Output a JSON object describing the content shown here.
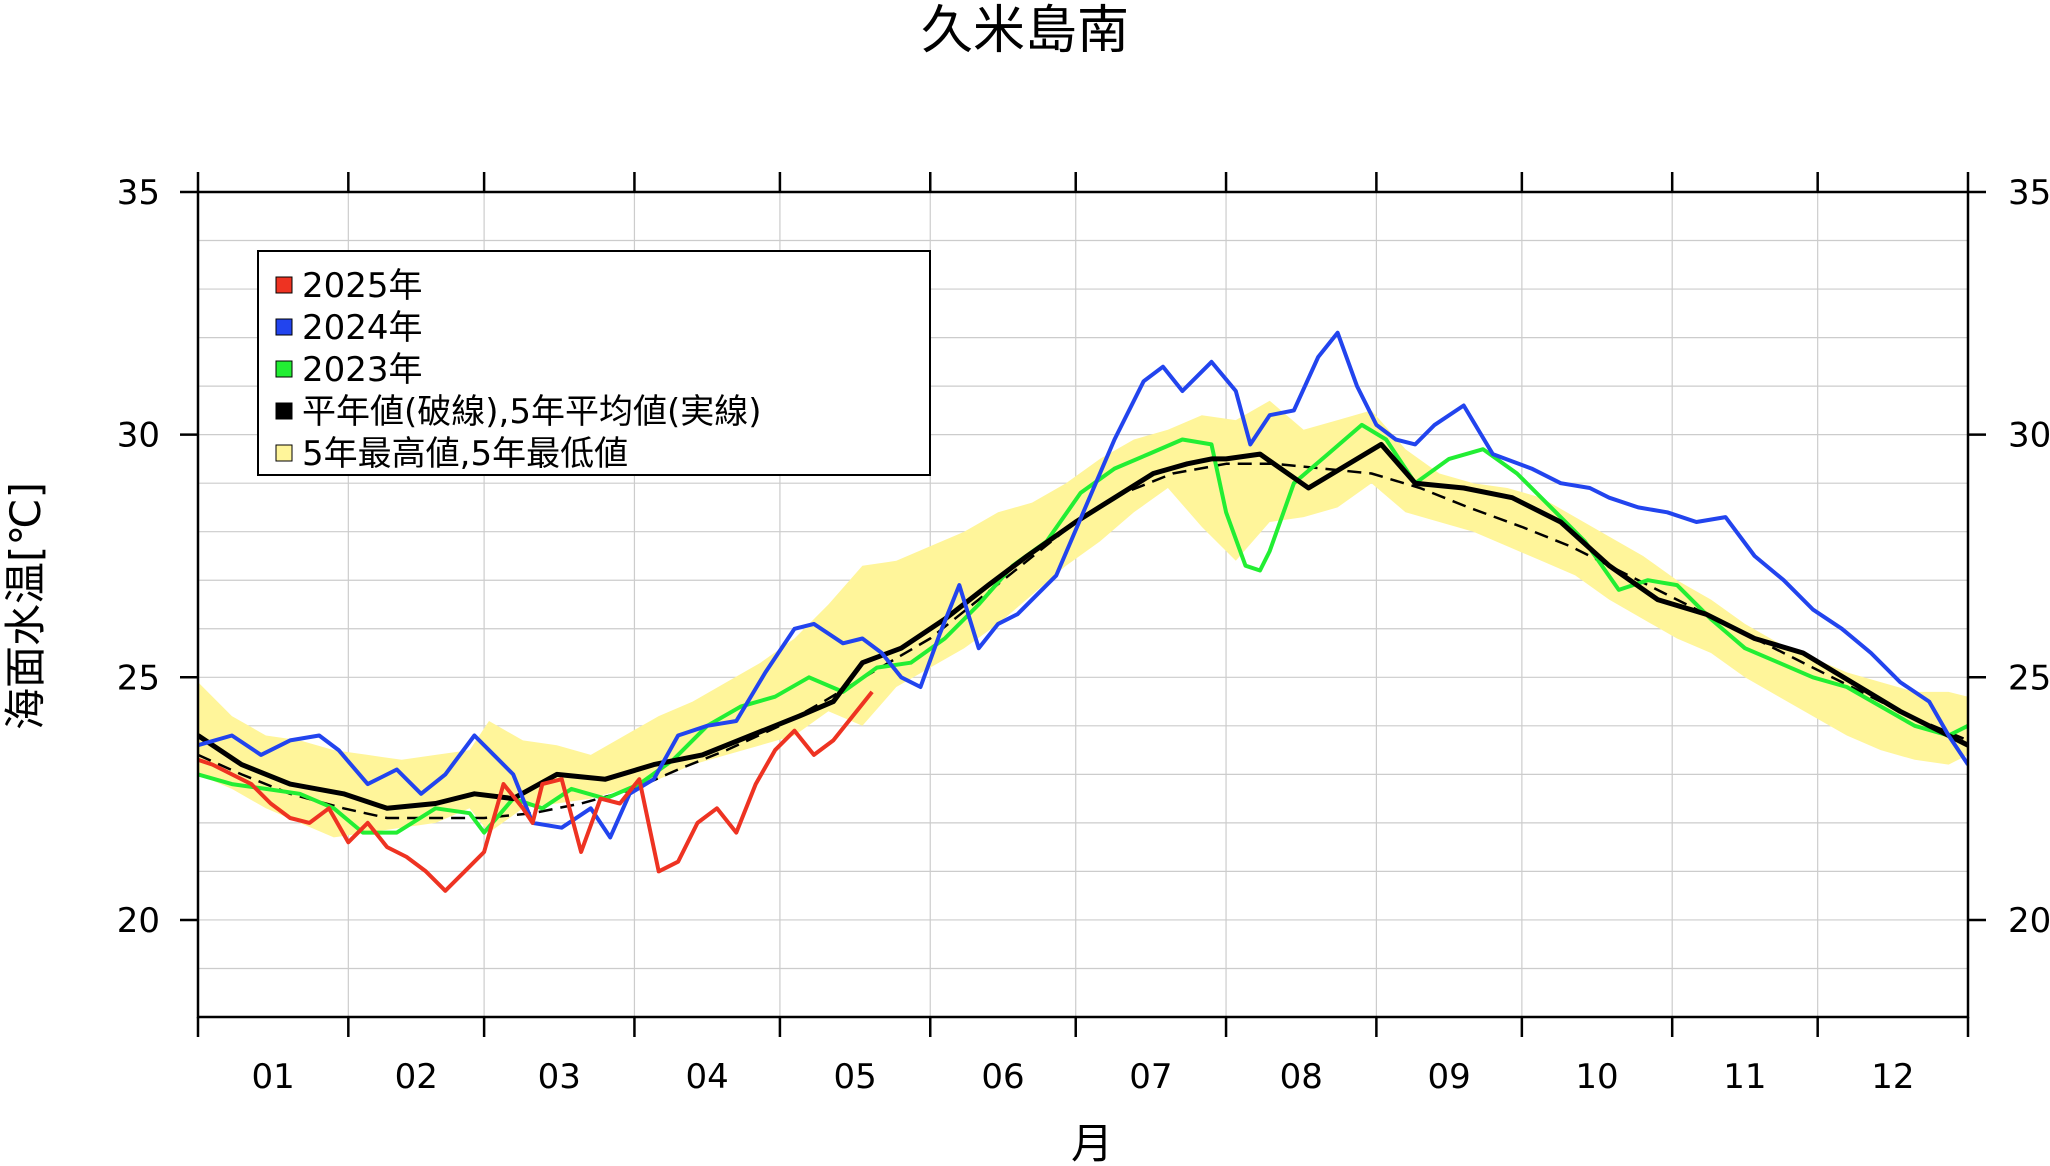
{
  "chart_data": {
    "type": "line",
    "title": "久米島南",
    "xlabel": "月",
    "ylabel": "海面水温[℃]",
    "x_ticks": [
      "01",
      "02",
      "03",
      "04",
      "05",
      "06",
      "07",
      "08",
      "09",
      "10",
      "11",
      "12"
    ],
    "y_ticks": [
      "20",
      "25",
      "30",
      "35"
    ],
    "x_range_day_of_year": [
      1,
      366
    ],
    "ylim": [
      18,
      35
    ],
    "grid": true,
    "legend_position": "top-left",
    "legend": [
      {
        "label": "2025年",
        "color": "#ee3322"
      },
      {
        "label": "2024年",
        "color": "#2244ee"
      },
      {
        "label": "2023年",
        "color": "#22ee33"
      },
      {
        "label": "平年値(破線),5年平均値(実線)",
        "color": "#000000"
      },
      {
        "label": "5年最高値,5年最低値",
        "color": "#fff59a"
      }
    ],
    "band_5yr": {
      "name": "5年最高値,5年最低値",
      "color": "#fff59a",
      "day": [
        1,
        8,
        15,
        22,
        29,
        36,
        43,
        50,
        57,
        61,
        68,
        75,
        82,
        89,
        96,
        103,
        110,
        117,
        124,
        131,
        138,
        145,
        152,
        159,
        166,
        173,
        180,
        187,
        194,
        201,
        208,
        215,
        222,
        229,
        236,
        243,
        250,
        257,
        264,
        271,
        278,
        285,
        292,
        299,
        306,
        313,
        320,
        327,
        334,
        341,
        348,
        355,
        362,
        366
      ],
      "high": [
        24.9,
        24.2,
        23.8,
        23.7,
        23.5,
        23.4,
        23.3,
        23.4,
        23.5,
        24.1,
        23.7,
        23.6,
        23.4,
        23.8,
        24.2,
        24.5,
        24.9,
        25.3,
        25.8,
        26.5,
        27.3,
        27.4,
        27.7,
        28.0,
        28.4,
        28.6,
        29.0,
        29.5,
        29.9,
        30.1,
        30.4,
        30.3,
        30.7,
        30.1,
        30.3,
        30.5,
        29.7,
        29.2,
        29.0,
        28.9,
        28.7,
        28.3,
        27.9,
        27.5,
        27.0,
        26.6,
        26.1,
        25.7,
        25.4,
        25.1,
        24.9,
        24.7,
        24.7,
        24.6
      ],
      "low": [
        23.0,
        22.7,
        22.3,
        22.0,
        21.7,
        21.8,
        21.9,
        22.0,
        22.3,
        21.8,
        22.3,
        22.4,
        22.5,
        22.7,
        22.9,
        23.2,
        23.4,
        23.6,
        23.8,
        24.3,
        24.0,
        24.8,
        25.2,
        25.6,
        26.1,
        26.7,
        27.3,
        27.8,
        28.4,
        28.9,
        28.1,
        27.4,
        28.2,
        28.3,
        28.5,
        29.0,
        28.4,
        28.2,
        28.0,
        27.7,
        27.4,
        27.1,
        26.6,
        26.2,
        25.8,
        25.5,
        25.0,
        24.6,
        24.2,
        23.8,
        23.5,
        23.3,
        23.2,
        23.4
      ]
    },
    "series": [
      {
        "name": "平年値(破線)",
        "color": "#000000",
        "dashed": true,
        "x": [
          1,
          10,
          20,
          31,
          40,
          50,
          60,
          70,
          80,
          91,
          100,
          110,
          121,
          130,
          140,
          152,
          162,
          172,
          182,
          192,
          202,
          213,
          223,
          233,
          243,
          253,
          263,
          274,
          284,
          294,
          304,
          314,
          324,
          334,
          344,
          354,
          366
        ],
        "y": [
          23.4,
          23.0,
          22.6,
          22.3,
          22.1,
          22.1,
          22.1,
          22.2,
          22.4,
          22.7,
          23.1,
          23.5,
          24.0,
          24.5,
          25.1,
          25.8,
          26.6,
          27.4,
          28.2,
          28.8,
          29.2,
          29.4,
          29.4,
          29.3,
          29.2,
          28.9,
          28.5,
          28.1,
          27.7,
          27.2,
          26.7,
          26.2,
          25.7,
          25.2,
          24.7,
          24.2,
          23.7
        ]
      },
      {
        "name": "5年平均値(実線)",
        "color": "#000000",
        "dashed": false,
        "x": [
          1,
          10,
          20,
          31,
          40,
          50,
          58,
          66,
          75,
          85,
          95,
          105,
          115,
          125,
          132,
          138,
          146,
          155,
          164,
          172,
          182,
          190,
          198,
          205,
          210,
          213,
          220,
          230,
          240,
          245,
          252,
          262,
          272,
          282,
          292,
          302,
          312,
          322,
          332,
          342,
          352,
          360,
          366
        ],
        "y": [
          23.8,
          23.2,
          22.8,
          22.6,
          22.3,
          22.4,
          22.6,
          22.5,
          23.0,
          22.9,
          23.2,
          23.4,
          23.8,
          24.2,
          24.5,
          25.3,
          25.6,
          26.2,
          26.9,
          27.5,
          28.2,
          28.7,
          29.2,
          29.4,
          29.5,
          29.5,
          29.6,
          28.9,
          29.5,
          29.8,
          29.0,
          28.9,
          28.7,
          28.2,
          27.3,
          26.6,
          26.3,
          25.8,
          25.5,
          24.9,
          24.3,
          23.9,
          23.6
        ]
      },
      {
        "name": "2023年",
        "color": "#22ee33",
        "dashed": false,
        "x": [
          1,
          8,
          15,
          22,
          29,
          35,
          42,
          50,
          57,
          60,
          66,
          72,
          78,
          85,
          92,
          99,
          106,
          113,
          120,
          127,
          134,
          141,
          148,
          155,
          162,
          169,
          176,
          183,
          190,
          197,
          204,
          210,
          213,
          217,
          220,
          222,
          227,
          234,
          241,
          246,
          252,
          259,
          266,
          273,
          280,
          287,
          294,
          300,
          306,
          313,
          320,
          327,
          334,
          341,
          348,
          355,
          362,
          366
        ],
        "y": [
          23.0,
          22.8,
          22.7,
          22.6,
          22.3,
          21.8,
          21.8,
          22.3,
          22.2,
          21.8,
          22.5,
          22.3,
          22.7,
          22.5,
          22.8,
          23.3,
          24.0,
          24.4,
          24.6,
          25.0,
          24.7,
          25.2,
          25.3,
          25.8,
          26.5,
          27.3,
          27.8,
          28.8,
          29.3,
          29.6,
          29.9,
          29.8,
          28.4,
          27.3,
          27.2,
          27.6,
          29.0,
          29.6,
          30.2,
          29.9,
          29.0,
          29.5,
          29.7,
          29.2,
          28.5,
          27.8,
          26.8,
          27.0,
          26.9,
          26.2,
          25.6,
          25.3,
          25.0,
          24.8,
          24.4,
          24.0,
          23.8,
          24.0
        ]
      },
      {
        "name": "2024年",
        "color": "#2244ee",
        "dashed": false,
        "x": [
          1,
          8,
          14,
          20,
          26,
          30,
          36,
          42,
          47,
          52,
          58,
          62,
          66,
          70,
          76,
          82,
          86,
          90,
          95,
          100,
          106,
          112,
          118,
          124,
          128,
          134,
          138,
          142,
          146,
          150,
          154,
          158,
          162,
          166,
          170,
          174,
          178,
          184,
          190,
          196,
          200,
          204,
          210,
          215,
          218,
          222,
          227,
          232,
          236,
          240,
          244,
          248,
          252,
          256,
          262,
          268,
          276,
          282,
          288,
          292,
          298,
          304,
          310,
          316,
          322,
          328,
          334,
          340,
          346,
          352,
          358,
          362,
          366
        ],
        "y": [
          23.6,
          23.8,
          23.4,
          23.7,
          23.8,
          23.5,
          22.8,
          23.1,
          22.6,
          23.0,
          23.8,
          23.4,
          23.0,
          22.0,
          21.9,
          22.3,
          21.7,
          22.6,
          22.9,
          23.8,
          24.0,
          24.1,
          25.1,
          26.0,
          26.1,
          25.7,
          25.8,
          25.5,
          25.0,
          24.8,
          25.9,
          26.9,
          25.6,
          26.1,
          26.3,
          26.7,
          27.1,
          28.5,
          29.9,
          31.1,
          31.4,
          30.9,
          31.5,
          30.9,
          29.8,
          30.4,
          30.5,
          31.6,
          32.1,
          31.0,
          30.2,
          29.9,
          29.8,
          30.2,
          30.6,
          29.6,
          29.3,
          29.0,
          28.9,
          28.7,
          28.5,
          28.4,
          28.2,
          28.3,
          27.5,
          27.0,
          26.4,
          26.0,
          25.5,
          24.9,
          24.5,
          23.8,
          23.2
        ]
      },
      {
        "name": "2025年",
        "color": "#ee3322",
        "dashed": false,
        "x": [
          1,
          4,
          8,
          12,
          16,
          20,
          24,
          28,
          32,
          36,
          40,
          44,
          48,
          52,
          56,
          60,
          64,
          68,
          70,
          72,
          76,
          80,
          84,
          88,
          92,
          96,
          100,
          104,
          108,
          112,
          116,
          120,
          124,
          128,
          132,
          136,
          140
        ],
        "y": [
          23.3,
          23.2,
          23.0,
          22.8,
          22.4,
          22.1,
          22.0,
          22.3,
          21.6,
          22.0,
          21.5,
          21.3,
          21.0,
          20.6,
          21.0,
          21.4,
          22.8,
          22.3,
          22.0,
          22.8,
          22.9,
          21.4,
          22.5,
          22.4,
          22.9,
          21.0,
          21.2,
          22.0,
          22.3,
          21.8,
          22.8,
          23.5,
          23.9,
          23.4,
          23.7,
          24.2,
          24.7
        ]
      }
    ]
  }
}
